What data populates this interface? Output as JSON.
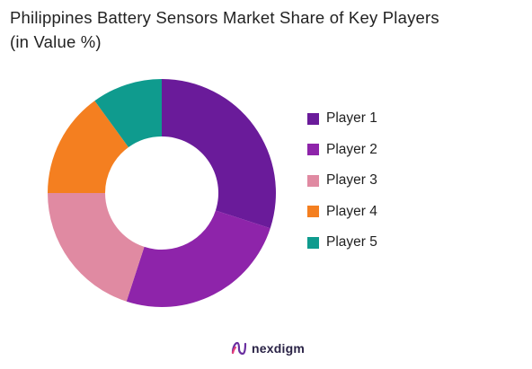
{
  "title_line1": "Philippines Battery Sensors Market Share of Key Players",
  "title_line2": "(in Value %)",
  "brand": {
    "name": "nexdigm",
    "logo_icon": "nexdigm-logo-icon"
  },
  "chart_data": {
    "type": "pie",
    "variant": "donut",
    "title": "Philippines Battery Sensors Market Share of Key Players (in Value %)",
    "legend_position": "right",
    "categories": [
      "Player 1",
      "Player 2",
      "Player 3",
      "Player 4",
      "Player 5"
    ],
    "values": [
      30,
      25,
      20,
      15,
      10
    ],
    "colors": [
      "#6a1b9a",
      "#8e24aa",
      "#e08aa2",
      "#f47f20",
      "#0f9b8e"
    ]
  },
  "legend": {
    "items": [
      {
        "label": "Player 1",
        "color": "#6a1b9a"
      },
      {
        "label": "Player 2",
        "color": "#8e24aa"
      },
      {
        "label": "Player 3",
        "color": "#e08aa2"
      },
      {
        "label": "Player 4",
        "color": "#f47f20"
      },
      {
        "label": "Player 5",
        "color": "#0f9b8e"
      }
    ]
  }
}
